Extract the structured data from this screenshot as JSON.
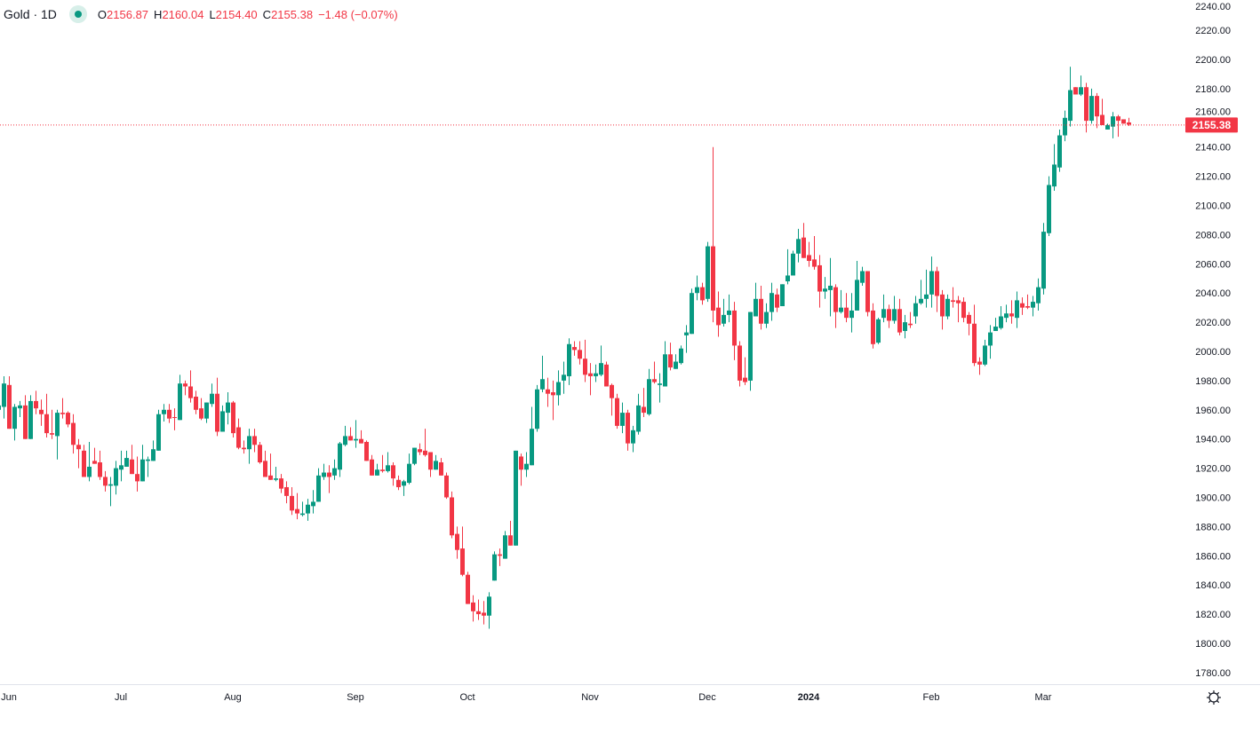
{
  "header": {
    "symbol_title": "Gold · 1D",
    "status_color": "#089981",
    "open_label": "O",
    "open": "2156.87",
    "high_label": "H",
    "high": "2160.04",
    "low_label": "L",
    "low": "2154.40",
    "close_label": "C",
    "close": "2155.38",
    "change": "−1.48 (−0.07%)"
  },
  "settings_icon": "gear-icon",
  "chart_data": {
    "type": "candlestick",
    "title": "Gold · 1D",
    "colors": {
      "up": "#089981",
      "down": "#f23645"
    },
    "ylim": [
      1780,
      2240
    ],
    "yticks": [
      "1780.00",
      "1800.00",
      "1820.00",
      "1840.00",
      "1860.00",
      "1880.00",
      "1900.00",
      "1920.00",
      "1940.00",
      "1960.00",
      "1980.00",
      "2000.00",
      "2020.00",
      "2040.00",
      "2060.00",
      "2080.00",
      "2100.00",
      "2120.00",
      "2140.00",
      "2160.00",
      "2180.00",
      "2200.00",
      "2220.00",
      "2240.00"
    ],
    "xticks": [
      "Jun",
      "Jul",
      "Aug",
      "Sep",
      "Oct",
      "Nov",
      "Dec",
      "2024",
      "Feb",
      "Mar"
    ],
    "grid": false,
    "last_price": 2155.38,
    "last_price_label": "2155.38",
    "ohlc_columns": [
      "open",
      "high",
      "low",
      "close"
    ],
    "ohlc": [
      [
        1960,
        1964,
        1957,
        1963
      ],
      [
        1962,
        1983,
        1954,
        1978
      ],
      [
        1977,
        1983,
        1947,
        1947
      ],
      [
        1947,
        1964,
        1939,
        1962
      ],
      [
        1961,
        1966,
        1955,
        1963
      ],
      [
        1963,
        1970,
        1940,
        1940
      ],
      [
        1940,
        1970,
        1940,
        1966
      ],
      [
        1966,
        1973,
        1957,
        1961
      ],
      [
        1960,
        1967,
        1949,
        1957
      ],
      [
        1957,
        1971,
        1941,
        1944
      ],
      [
        1944,
        1960,
        1940,
        1943
      ],
      [
        1942,
        1960,
        1926,
        1958
      ],
      [
        1958,
        1968,
        1954,
        1957
      ],
      [
        1958,
        1959,
        1948,
        1950
      ],
      [
        1951,
        1957,
        1930,
        1936
      ],
      [
        1936,
        1940,
        1920,
        1933
      ],
      [
        1932,
        1936,
        1914,
        1914
      ],
      [
        1914,
        1938,
        1911,
        1921
      ],
      [
        1925,
        1934,
        1923,
        1923
      ],
      [
        1924,
        1932,
        1912,
        1914
      ],
      [
        1914,
        1918,
        1904,
        1908
      ],
      [
        1908,
        1914,
        1894,
        1909
      ],
      [
        1908,
        1925,
        1902,
        1920
      ],
      [
        1919,
        1932,
        1911,
        1922
      ],
      [
        1921,
        1932,
        1921,
        1927
      ],
      [
        1926,
        1936,
        1916,
        1916
      ],
      [
        1916,
        1928,
        1904,
        1911
      ],
      [
        1911,
        1936,
        1911,
        1926
      ],
      [
        1925,
        1928,
        1914,
        1926
      ],
      [
        1925,
        1939,
        1925,
        1933
      ],
      [
        1932,
        1960,
        1932,
        1957
      ],
      [
        1957,
        1964,
        1952,
        1960
      ],
      [
        1960,
        1964,
        1951,
        1954
      ],
      [
        1955,
        1961,
        1946,
        1954.5
      ],
      [
        1953,
        1984,
        1953,
        1978
      ],
      [
        1978,
        1980,
        1970,
        1976
      ],
      [
        1976,
        1987,
        1965,
        1968
      ],
      [
        1969,
        1973,
        1957,
        1960
      ],
      [
        1961,
        1968,
        1953,
        1954
      ],
      [
        1954,
        1965,
        1951,
        1965
      ],
      [
        1964,
        1978,
        1962,
        1971
      ],
      [
        1971,
        1982,
        1942,
        1945
      ],
      [
        1945,
        1963,
        1945,
        1959
      ],
      [
        1958,
        1972,
        1950,
        1965
      ],
      [
        1965,
        1966,
        1941,
        1944
      ],
      [
        1948,
        1954,
        1933,
        1934
      ],
      [
        1934,
        1939,
        1930,
        1933
      ],
      [
        1933,
        1947,
        1923,
        1942
      ],
      [
        1942,
        1947,
        1931,
        1936
      ],
      [
        1936,
        1938,
        1923,
        1924
      ],
      [
        1925,
        1932,
        1914,
        1914
      ],
      [
        1915,
        1930,
        1912,
        1912
      ],
      [
        1912,
        1921,
        1911,
        1913
      ],
      [
        1913,
        1916,
        1903,
        1906
      ],
      [
        1907,
        1911,
        1896,
        1901
      ],
      [
        1901,
        1907,
        1888,
        1891
      ],
      [
        1892,
        1903,
        1885,
        1889
      ],
      [
        1888,
        1897,
        1887,
        1889
      ],
      [
        1889,
        1899,
        1884,
        1895
      ],
      [
        1894,
        1905,
        1889,
        1897
      ],
      [
        1897,
        1920,
        1897,
        1915
      ],
      [
        1914,
        1923,
        1912,
        1917
      ],
      [
        1917,
        1922,
        1903,
        1914
      ],
      [
        1915,
        1926,
        1912,
        1920
      ],
      [
        1919,
        1938,
        1914,
        1937
      ],
      [
        1936,
        1949,
        1935,
        1942
      ],
      [
        1942,
        1948,
        1939,
        1939
      ],
      [
        1939,
        1953,
        1934,
        1940
      ],
      [
        1940,
        1946,
        1937,
        1937
      ],
      [
        1938,
        1939,
        1925,
        1925
      ],
      [
        1926,
        1929,
        1915,
        1915
      ],
      [
        1915,
        1923,
        1915,
        1919
      ],
      [
        1919,
        1929,
        1917,
        1918
      ],
      [
        1918,
        1931,
        1917,
        1922
      ],
      [
        1922,
        1924,
        1908,
        1913
      ],
      [
        1912,
        1915,
        1905,
        1907
      ],
      [
        1908,
        1912,
        1901,
        1911
      ],
      [
        1910,
        1930,
        1909,
        1923
      ],
      [
        1923,
        1934,
        1922,
        1934
      ],
      [
        1933,
        1937,
        1929,
        1931
      ],
      [
        1932,
        1947,
        1928,
        1929
      ],
      [
        1931,
        1931,
        1914,
        1919
      ],
      [
        1919,
        1929,
        1919,
        1925
      ],
      [
        1924,
        1927,
        1915,
        1915
      ],
      [
        1915,
        1917,
        1899,
        1900
      ],
      [
        1900,
        1904,
        1872,
        1874
      ],
      [
        1875,
        1880,
        1858,
        1864
      ],
      [
        1865,
        1880,
        1846,
        1847
      ],
      [
        1847,
        1849,
        1827,
        1827
      ],
      [
        1828,
        1833,
        1815,
        1822
      ],
      [
        1822,
        1830,
        1816,
        1820
      ],
      [
        1821,
        1829,
        1813,
        1819
      ],
      [
        1819,
        1835,
        1810,
        1832
      ],
      [
        1843,
        1863,
        1843,
        1861
      ],
      [
        1861,
        1865,
        1853,
        1860
      ],
      [
        1858,
        1877,
        1858,
        1874
      ],
      [
        1874,
        1884,
        1867,
        1867
      ],
      [
        1867,
        1932,
        1867,
        1932
      ],
      [
        1928,
        1930,
        1908,
        1919
      ],
      [
        1919,
        1931,
        1914,
        1923
      ],
      [
        1922,
        1962,
        1922,
        1947
      ],
      [
        1947,
        1977,
        1945,
        1974
      ],
      [
        1974,
        1997,
        1972,
        1981
      ],
      [
        1974,
        1982,
        1962,
        1971
      ],
      [
        1972,
        1980,
        1953,
        1970
      ],
      [
        1970,
        1987,
        1963,
        1979
      ],
      [
        1980,
        1993,
        1971,
        1984
      ],
      [
        1983,
        2009,
        1977,
        2005
      ],
      [
        2003,
        2007,
        1997,
        2001
      ],
      [
        2001,
        2007,
        1991,
        1995
      ],
      [
        1995,
        2008,
        1979,
        1984
      ],
      [
        1985,
        1992,
        1970,
        1983
      ],
      [
        1983,
        1991,
        1979,
        1985
      ],
      [
        1984,
        2004,
        1983,
        1992
      ],
      [
        1991,
        1993,
        1976,
        1976
      ],
      [
        1977,
        1978,
        1956,
        1968
      ],
      [
        1968,
        1971,
        1947,
        1949
      ],
      [
        1949,
        1965,
        1944,
        1958
      ],
      [
        1958,
        1960,
        1932,
        1937
      ],
      [
        1937,
        1949,
        1931,
        1946
      ],
      [
        1945,
        1971,
        1943,
        1963
      ],
      [
        1962,
        1975,
        1955,
        1958
      ],
      [
        1957,
        1988,
        1956,
        1981
      ],
      [
        1981,
        1993,
        1978,
        1979
      ],
      [
        1977,
        1985,
        1965,
        1978
      ],
      [
        1976,
        2007,
        1976,
        1998
      ],
      [
        1998,
        2006,
        1987,
        1989
      ],
      [
        1988,
        1998,
        1988,
        1993
      ],
      [
        1992,
        2004,
        1991,
        2002
      ],
      [
        2011,
        2018,
        1999,
        2013
      ],
      [
        2012,
        2043,
        2012,
        2040
      ],
      [
        2040,
        2052,
        2035,
        2044
      ],
      [
        2044,
        2047,
        2032,
        2035
      ],
      [
        2036,
        2075,
        2034,
        2072
      ],
      [
        2072,
        2140,
        2020,
        2028
      ],
      [
        2030,
        2041,
        2010,
        2018
      ],
      [
        2019,
        2036,
        2017,
        2025
      ],
      [
        2025,
        2039,
        2020,
        2028
      ],
      [
        2028,
        2034,
        1994,
        2004
      ],
      [
        2004,
        2007,
        1976,
        1980
      ],
      [
        1982,
        1996,
        1977,
        1979
      ],
      [
        1980,
        2027,
        1973,
        2027
      ],
      [
        2024,
        2047,
        2024,
        2036
      ],
      [
        2036,
        2045,
        2015,
        2019
      ],
      [
        2019,
        2033,
        2016,
        2027
      ],
      [
        2027,
        2047,
        2021,
        2040
      ],
      [
        2039,
        2043,
        2027,
        2030
      ],
      [
        2031,
        2046,
        2031,
        2046
      ],
      [
        2048,
        2070,
        2046,
        2052
      ],
      [
        2052,
        2069,
        2052,
        2067
      ],
      [
        2067,
        2084,
        2061,
        2077
      ],
      [
        2078,
        2088,
        2064,
        2064
      ],
      [
        2066,
        2075,
        2058,
        2062
      ],
      [
        2063,
        2079,
        2056,
        2058
      ],
      [
        2059,
        2066,
        2030,
        2041
      ],
      [
        2041,
        2051,
        2036,
        2043
      ],
      [
        2042,
        2064,
        2024,
        2045
      ],
      [
        2044,
        2046,
        2016,
        2027
      ],
      [
        2027,
        2042,
        2026,
        2030
      ],
      [
        2030,
        2040,
        2020,
        2023
      ],
      [
        2023,
        2040,
        2013,
        2028
      ],
      [
        2028,
        2062,
        2028,
        2049
      ],
      [
        2047,
        2058,
        2045,
        2055
      ],
      [
        2055,
        2055,
        2024,
        2027
      ],
      [
        2028,
        2033,
        2002,
        2005
      ],
      [
        2006,
        2023,
        2005,
        2022
      ],
      [
        2023,
        2039,
        2020,
        2029
      ],
      [
        2029,
        2032,
        2016,
        2021
      ],
      [
        2021,
        2038,
        2019,
        2029
      ],
      [
        2029,
        2036,
        2011,
        2013
      ],
      [
        2014,
        2025,
        2009,
        2020
      ],
      [
        2019,
        2027,
        2016,
        2018
      ],
      [
        2024,
        2038,
        2019,
        2033
      ],
      [
        2033,
        2049,
        2032,
        2036
      ],
      [
        2036,
        2056,
        2030,
        2039
      ],
      [
        2039,
        2065,
        2030,
        2055
      ],
      [
        2055,
        2058,
        2027,
        2038
      ],
      [
        2039,
        2042,
        2015,
        2024
      ],
      [
        2024,
        2039,
        2022,
        2036
      ],
      [
        2035,
        2044,
        2030,
        2034
      ],
      [
        2035,
        2038,
        2020,
        2033
      ],
      [
        2034,
        2037,
        2020,
        2023
      ],
      [
        2025,
        2027,
        2011,
        2019
      ],
      [
        2019,
        2032,
        1990,
        1992
      ],
      [
        1993,
        1996,
        1984,
        1991
      ],
      [
        1991,
        2008,
        1990,
        2004
      ],
      [
        2004,
        2018,
        1995,
        2013
      ],
      [
        2014,
        2023,
        2014,
        2017
      ],
      [
        2016,
        2031,
        2015,
        2024
      ],
      [
        2023,
        2032,
        2020,
        2026
      ],
      [
        2026,
        2035,
        2019,
        2024
      ],
      [
        2023,
        2041,
        2016,
        2035
      ],
      [
        2033,
        2037,
        2025,
        2030
      ],
      [
        2031,
        2039,
        2029,
        2030
      ],
      [
        2030,
        2038,
        2024,
        2034
      ],
      [
        2033,
        2050,
        2028,
        2044
      ],
      [
        2043,
        2088,
        2039,
        2082
      ],
      [
        2081,
        2120,
        2079,
        2114
      ],
      [
        2113,
        2142,
        2110,
        2128
      ],
      [
        2126,
        2152,
        2123,
        2148
      ],
      [
        2148,
        2165,
        2144,
        2160
      ],
      [
        2158,
        2195,
        2154,
        2179
      ],
      [
        2181,
        2181,
        2176,
        2176
      ],
      [
        2176,
        2189,
        2175,
        2181
      ],
      [
        2181,
        2184,
        2150,
        2158
      ],
      [
        2158,
        2180,
        2156,
        2175
      ],
      [
        2175,
        2177,
        2153,
        2161
      ],
      [
        2162,
        2173,
        2155,
        2155
      ],
      [
        2152,
        2156,
        2152,
        2155
      ],
      [
        2154,
        2164,
        2146,
        2161
      ],
      [
        2161,
        2162,
        2147,
        2158
      ],
      [
        2159,
        2159,
        2156,
        2156
      ],
      [
        2156.87,
        2160.04,
        2154.4,
        2155.38
      ]
    ]
  }
}
